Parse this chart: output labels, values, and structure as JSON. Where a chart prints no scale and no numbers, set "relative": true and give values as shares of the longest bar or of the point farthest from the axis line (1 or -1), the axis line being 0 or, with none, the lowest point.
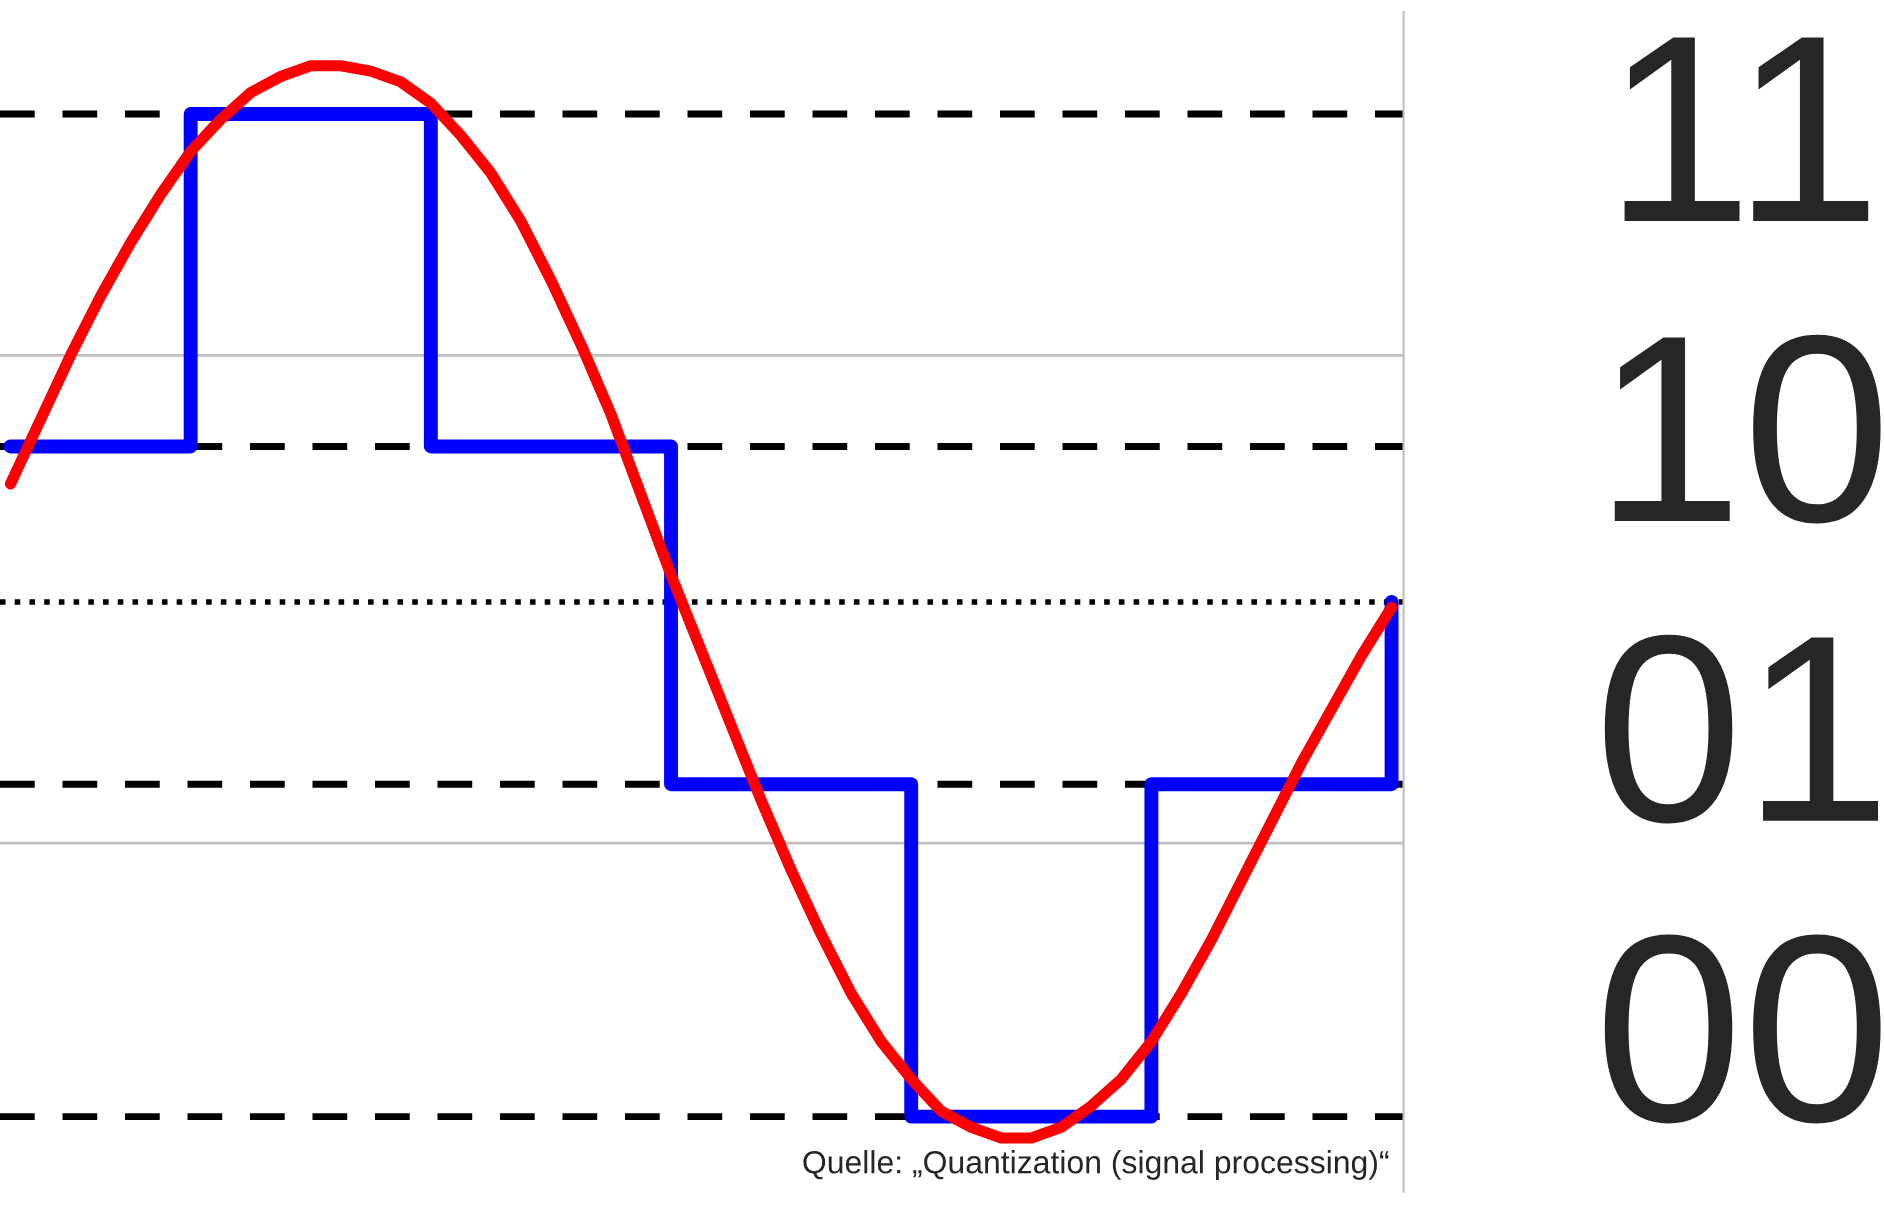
{
  "chart_data": {
    "type": "line",
    "relative": true,
    "categories": [
      null,
      null,
      null,
      null,
      null,
      null,
      null,
      null,
      null,
      null,
      null,
      null,
      null,
      null,
      null,
      null,
      null,
      null,
      null,
      null,
      null,
      null,
      null,
      null,
      null,
      null,
      null,
      null,
      null,
      null,
      null,
      null,
      null,
      null,
      null,
      null,
      null,
      null,
      null,
      null,
      null,
      null,
      null,
      null,
      null,
      null,
      null
    ],
    "series": [
      {
        "type": "step",
        "color": "#0000ff",
        "values": [
          0.29,
          0.29,
          0.29,
          0.29,
          0.29,
          0.29,
          0.91,
          0.91,
          0.91,
          0.91,
          0.91,
          0.91,
          0.91,
          0.91,
          0.29,
          0.29,
          0.29,
          0.29,
          0.29,
          0.29,
          0.29,
          0.29,
          -0.34,
          -0.34,
          -0.34,
          -0.34,
          -0.34,
          -0.34,
          -0.34,
          -0.34,
          -0.96,
          -0.96,
          -0.96,
          -0.96,
          -0.96,
          -0.96,
          -0.96,
          -0.96,
          -0.34,
          -0.34,
          -0.34,
          -0.34,
          -0.34,
          -0.34,
          -0.34,
          -0.34,
          0
        ]
      },
      {
        "color": "#ff0000",
        "values": [
          0.22,
          0.34,
          0.46,
          0.57,
          0.67,
          0.76,
          0.84,
          0.9,
          0.95,
          0.98,
          1.0,
          1.0,
          0.99,
          0.97,
          0.93,
          0.87,
          0.8,
          0.71,
          0.6,
          0.48,
          0.35,
          0.2,
          0.05,
          -0.09,
          -0.23,
          -0.37,
          -0.5,
          -0.62,
          -0.73,
          -0.82,
          -0.89,
          -0.95,
          -0.98,
          -1.0,
          -1.0,
          -0.98,
          -0.94,
          -0.89,
          -0.82,
          -0.73,
          -0.63,
          -0.52,
          -0.41,
          -0.3,
          -0.2,
          -0.1,
          -0.01
        ]
      }
    ],
    "ref_lines": [
      {
        "axis": "y",
        "value": 0,
        "color": "#000000",
        "line_style": "dotted"
      },
      {
        "axis": "y",
        "value": 0.46,
        "color": "#c0c0c0",
        "line_style": "solid"
      },
      {
        "axis": "y",
        "value": -0.45,
        "color": "#c0c0c0",
        "line_style": "solid"
      },
      {
        "axis": "y",
        "value": 0.91,
        "color": "#000000",
        "line_style": "dashed"
      },
      {
        "axis": "y",
        "value": 0.29,
        "color": "#000000",
        "line_style": "dashed"
      },
      {
        "axis": "y",
        "value": -0.34,
        "color": "#000000",
        "line_style": "dashed"
      },
      {
        "axis": "y",
        "value": -0.96,
        "color": "#000000",
        "line_style": "dashed"
      }
    ],
    "annotations": [
      "11",
      "10",
      "01",
      "00",
      "Quelle: „Quantization (signal processing)“"
    ],
    "grid": false,
    "legend": false,
    "marker": "none"
  }
}
